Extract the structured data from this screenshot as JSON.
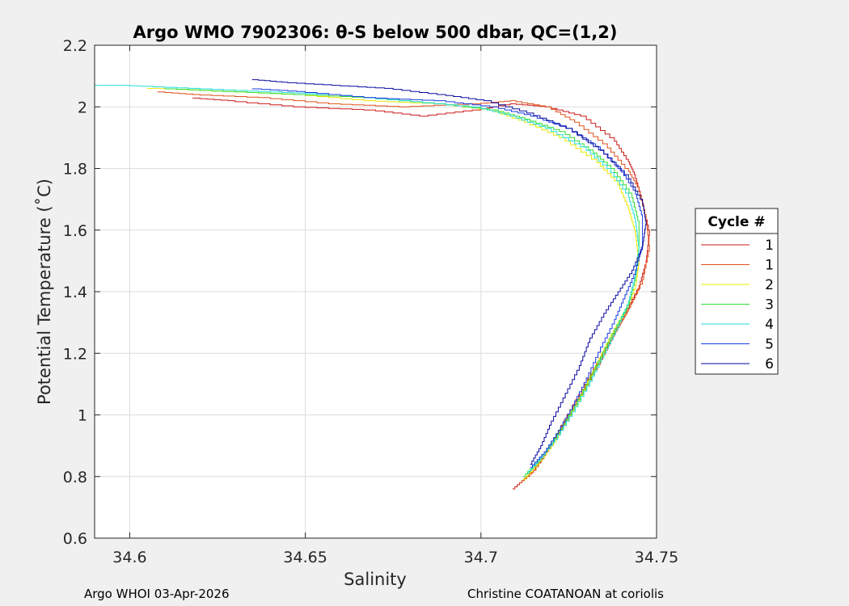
{
  "chart_data": {
    "type": "line",
    "title": "Argo WMO 7902306: θ-S below 500 dbar,  QC=(1,2)",
    "xlabel": "Salinity",
    "ylabel": "Potential Temperature (˚C)",
    "xlim": [
      34.59,
      34.75
    ],
    "ylim": [
      0.6,
      2.2
    ],
    "xticks": [
      "34.6",
      "34.65",
      "34.7",
      "34.75"
    ],
    "xtick_values": [
      34.6,
      34.65,
      34.7,
      34.75
    ],
    "yticks": [
      "0.6",
      "0.8",
      "1",
      "1.2",
      "1.4",
      "1.6",
      "1.8",
      "2",
      "2.2"
    ],
    "ytick_values": [
      0.6,
      0.8,
      1.0,
      1.2,
      1.4,
      1.6,
      1.8,
      2.0,
      2.2
    ],
    "grid": true,
    "legend_title": "Cycle #",
    "legend_position": "outside-right",
    "series": [
      {
        "name": "1",
        "color": "#cc1a1a",
        "points": [
          [
            34.709,
            0.76
          ],
          [
            34.713,
            0.8
          ],
          [
            34.718,
            0.87
          ],
          [
            34.722,
            0.95
          ],
          [
            34.727,
            1.05
          ],
          [
            34.732,
            1.15
          ],
          [
            34.737,
            1.25
          ],
          [
            34.741,
            1.33
          ],
          [
            34.745,
            1.42
          ],
          [
            34.747,
            1.5
          ],
          [
            34.748,
            1.6
          ],
          [
            34.746,
            1.7
          ],
          [
            34.744,
            1.78
          ],
          [
            34.742,
            1.83
          ],
          [
            34.738,
            1.9
          ],
          [
            34.73,
            1.97
          ],
          [
            34.72,
            2.0
          ],
          [
            34.71,
            2.01
          ],
          [
            34.7,
            1.99
          ],
          [
            34.685,
            1.97
          ],
          [
            34.67,
            1.99
          ],
          [
            34.65,
            2.0
          ],
          [
            34.63,
            2.02
          ],
          [
            34.618,
            2.03
          ]
        ]
      },
      {
        "name": "1",
        "color": "#e0501a",
        "points": [
          [
            34.711,
            0.78
          ],
          [
            34.715,
            0.82
          ],
          [
            34.719,
            0.89
          ],
          [
            34.724,
            0.98
          ],
          [
            34.729,
            1.08
          ],
          [
            34.734,
            1.18
          ],
          [
            34.738,
            1.27
          ],
          [
            34.742,
            1.35
          ],
          [
            34.746,
            1.44
          ],
          [
            34.748,
            1.55
          ],
          [
            34.747,
            1.65
          ],
          [
            34.745,
            1.74
          ],
          [
            34.742,
            1.8
          ],
          [
            34.736,
            1.88
          ],
          [
            34.728,
            1.95
          ],
          [
            34.72,
            2.0
          ],
          [
            34.71,
            2.02
          ],
          [
            34.7,
            2.01
          ],
          [
            34.68,
            2.0
          ],
          [
            34.66,
            2.01
          ],
          [
            34.64,
            2.03
          ],
          [
            34.62,
            2.04
          ],
          [
            34.608,
            2.05
          ]
        ]
      },
      {
        "name": "2",
        "color": "#e8e800",
        "points": [
          [
            34.712,
            0.79
          ],
          [
            34.716,
            0.84
          ],
          [
            34.72,
            0.9
          ],
          [
            34.724,
            0.98
          ],
          [
            34.729,
            1.08
          ],
          [
            34.733,
            1.17
          ],
          [
            34.737,
            1.26
          ],
          [
            34.741,
            1.34
          ],
          [
            34.744,
            1.42
          ],
          [
            34.745,
            1.5
          ],
          [
            34.744,
            1.6
          ],
          [
            34.742,
            1.68
          ],
          [
            34.739,
            1.76
          ],
          [
            34.733,
            1.83
          ],
          [
            34.724,
            1.9
          ],
          [
            34.714,
            1.95
          ],
          [
            34.704,
            1.99
          ],
          [
            34.69,
            2.01
          ],
          [
            34.67,
            2.02
          ],
          [
            34.65,
            2.04
          ],
          [
            34.63,
            2.05
          ],
          [
            34.61,
            2.06
          ],
          [
            34.605,
            2.06
          ]
        ]
      },
      {
        "name": "3",
        "color": "#33dd33",
        "points": [
          [
            34.712,
            0.8
          ],
          [
            34.716,
            0.85
          ],
          [
            34.72,
            0.91
          ],
          [
            34.725,
            1.0
          ],
          [
            34.73,
            1.1
          ],
          [
            34.734,
            1.19
          ],
          [
            34.738,
            1.28
          ],
          [
            34.742,
            1.36
          ],
          [
            34.744,
            1.45
          ],
          [
            34.745,
            1.55
          ],
          [
            34.745,
            1.63
          ],
          [
            34.743,
            1.72
          ],
          [
            34.738,
            1.8
          ],
          [
            34.732,
            1.86
          ],
          [
            34.724,
            1.92
          ],
          [
            34.714,
            1.96
          ],
          [
            34.705,
            1.99
          ],
          [
            34.69,
            2.01
          ],
          [
            34.67,
            2.03
          ],
          [
            34.65,
            2.04
          ],
          [
            34.63,
            2.05
          ],
          [
            34.61,
            2.06
          ]
        ]
      },
      {
        "name": "4",
        "color": "#22dddd",
        "points": [
          [
            34.713,
            0.81
          ],
          [
            34.717,
            0.86
          ],
          [
            34.721,
            0.92
          ],
          [
            34.726,
            1.01
          ],
          [
            34.731,
            1.11
          ],
          [
            34.735,
            1.2
          ],
          [
            34.739,
            1.29
          ],
          [
            34.742,
            1.37
          ],
          [
            34.744,
            1.46
          ],
          [
            34.745,
            1.55
          ],
          [
            34.744,
            1.64
          ],
          [
            34.742,
            1.72
          ],
          [
            34.737,
            1.8
          ],
          [
            34.73,
            1.87
          ],
          [
            34.72,
            1.93
          ],
          [
            34.71,
            1.97
          ],
          [
            34.7,
            2.0
          ],
          [
            34.68,
            2.02
          ],
          [
            34.66,
            2.04
          ],
          [
            34.64,
            2.05
          ],
          [
            34.62,
            2.06
          ],
          [
            34.6,
            2.07
          ],
          [
            34.59,
            2.07
          ]
        ]
      },
      {
        "name": "5",
        "color": "#1a3ce0",
        "points": [
          [
            34.714,
            0.83
          ],
          [
            34.718,
            0.88
          ],
          [
            34.722,
            0.95
          ],
          [
            34.726,
            1.03
          ],
          [
            34.73,
            1.12
          ],
          [
            34.734,
            1.22
          ],
          [
            34.738,
            1.31
          ],
          [
            34.741,
            1.39
          ],
          [
            34.744,
            1.47
          ],
          [
            34.746,
            1.56
          ],
          [
            34.746,
            1.65
          ],
          [
            34.744,
            1.73
          ],
          [
            34.74,
            1.8
          ],
          [
            34.734,
            1.87
          ],
          [
            34.726,
            1.93
          ],
          [
            34.716,
            1.97
          ],
          [
            34.705,
            2.0
          ],
          [
            34.69,
            2.02
          ],
          [
            34.67,
            2.03
          ],
          [
            34.65,
            2.05
          ],
          [
            34.635,
            2.06
          ]
        ]
      },
      {
        "name": "6",
        "color": "#0a0aa0",
        "points": [
          [
            34.714,
            0.84
          ],
          [
            34.717,
            0.9
          ],
          [
            34.72,
            0.98
          ],
          [
            34.724,
            1.07
          ],
          [
            34.728,
            1.16
          ],
          [
            34.731,
            1.25
          ],
          [
            34.735,
            1.33
          ],
          [
            34.739,
            1.4
          ],
          [
            34.743,
            1.47
          ],
          [
            34.746,
            1.55
          ],
          [
            34.747,
            1.63
          ],
          [
            34.746,
            1.7
          ],
          [
            34.742,
            1.78
          ],
          [
            34.735,
            1.86
          ],
          [
            34.726,
            1.93
          ],
          [
            34.715,
            1.98
          ],
          [
            34.703,
            2.02
          ],
          [
            34.69,
            2.04
          ],
          [
            34.675,
            2.06
          ],
          [
            34.66,
            2.07
          ],
          [
            34.645,
            2.08
          ],
          [
            34.635,
            2.09
          ]
        ]
      }
    ]
  },
  "footer": {
    "left": "Argo WHOI 03-Apr-2026",
    "right": "Christine COATANOAN at coriolis"
  }
}
